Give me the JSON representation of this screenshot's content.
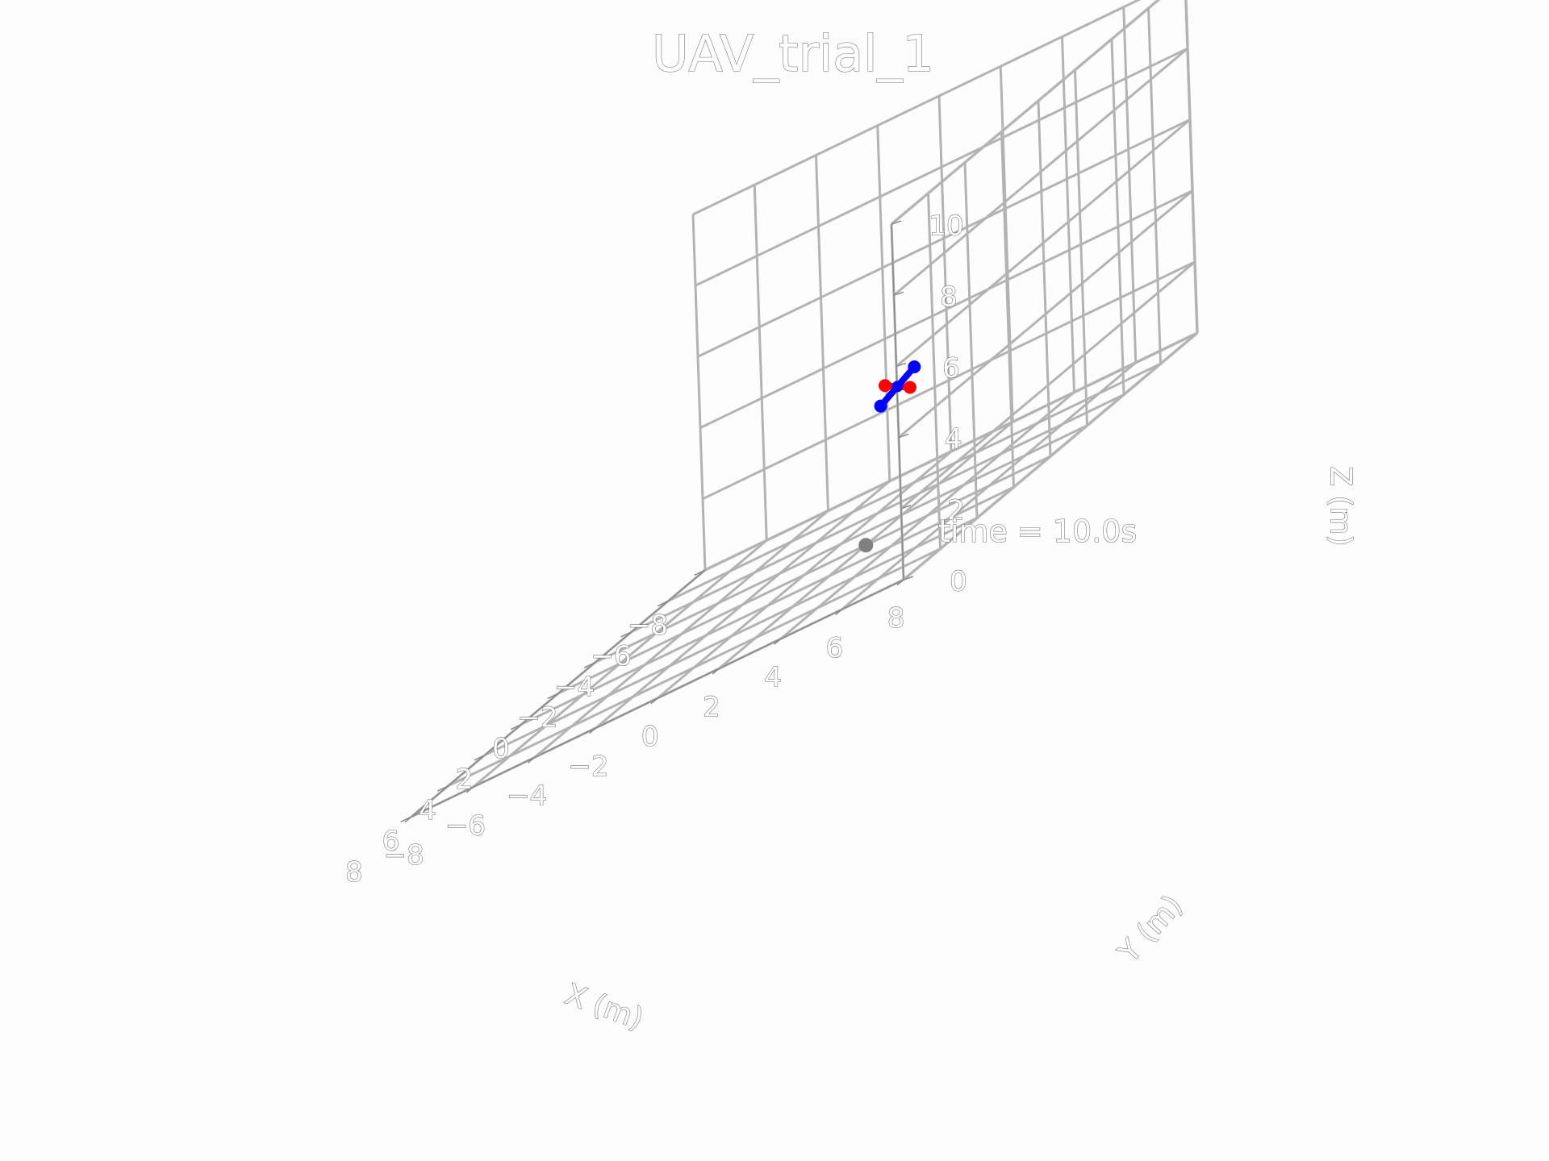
{
  "chart_data": {
    "type": "scatter",
    "projection": "3d",
    "title": "UAV_trial_1",
    "xlabel": "X (m)",
    "ylabel": "Y (m)",
    "zlabel": "Z (m)",
    "xlim": [
      -8,
      8
    ],
    "ylim": [
      -8,
      8
    ],
    "zlim": [
      0,
      10
    ],
    "x_ticks": [
      "−8",
      "−6",
      "−4",
      "−2",
      "0",
      "2",
      "4",
      "6",
      "8"
    ],
    "y_ticks": [
      "−8",
      "−6",
      "−4",
      "−2",
      "0",
      "2",
      "4",
      "6",
      "8"
    ],
    "z_ticks": [
      "0",
      "2",
      "4",
      "6",
      "8",
      "10"
    ],
    "grid": true,
    "annotation": "time = 10.0s",
    "uav": {
      "center": [
        4.0,
        5.6,
        4.7
      ],
      "arm_red": {
        "color": "#ff0000",
        "endpoints": [
          [
            3.5,
            4.9,
            4.8
          ],
          [
            4.5,
            6.3,
            4.6
          ]
        ]
      },
      "arm_blue": {
        "color": "#0000ff",
        "endpoints": [
          [
            3.9,
            6.1,
            5.0
          ],
          [
            4.1,
            5.1,
            4.4
          ]
        ]
      }
    },
    "target": {
      "color": "#808080",
      "point": [
        0.0,
        2.0,
        0.0
      ]
    }
  }
}
